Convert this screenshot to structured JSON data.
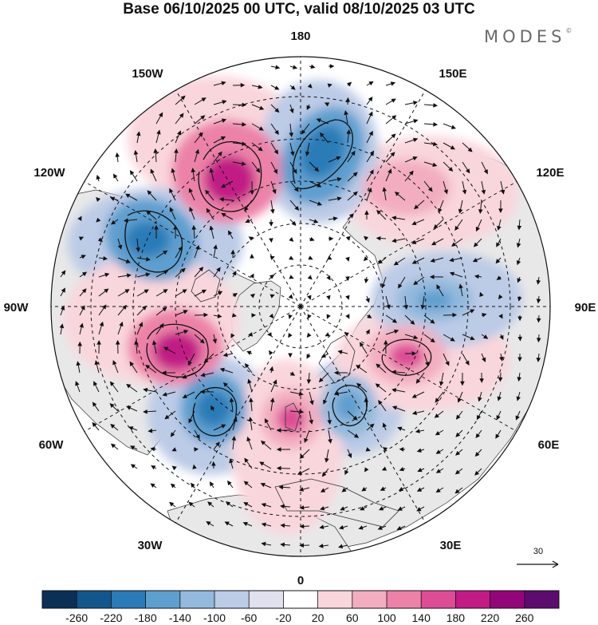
{
  "title": "Base 06/10/2025 00 UTC, valid 08/10/2025 03 UTC",
  "brand": {
    "name": "MODES",
    "mark": "©"
  },
  "projection": "north-polar-stereographic",
  "longitude_labels": {
    "deg_180": "180",
    "deg_150e": "150E",
    "deg_120e": "120E",
    "deg_90e": "90E",
    "deg_60e": "60E",
    "deg_30e": "30E",
    "deg_0": "0",
    "deg_30w": "30W",
    "deg_60w": "60W",
    "deg_90w": "90W",
    "deg_120w": "120W",
    "deg_150w": "150W"
  },
  "wind_reference": {
    "value": "30"
  },
  "colorbar": {
    "ticks": [
      "-260",
      "-220",
      "-180",
      "-140",
      "-100",
      "-60",
      "-20",
      "20",
      "60",
      "100",
      "140",
      "180",
      "220",
      "260"
    ],
    "colors": [
      "#0b2f55",
      "#12578c",
      "#2a7bb7",
      "#5e9fcf",
      "#93b9dd",
      "#bccbe6",
      "#e0e0ef",
      "#ffffff",
      "#f9d6dc",
      "#f2aec0",
      "#ec82a8",
      "#dd4d95",
      "#c11b85",
      "#93067a",
      "#5d0b6f"
    ]
  },
  "anomaly_centers": [
    {
      "name": "ridge-pacific-150w",
      "lon": -150,
      "lat": 58,
      "sign": "positive",
      "value": 200
    },
    {
      "name": "trough-bering",
      "lon": 172,
      "lat": 62,
      "sign": "negative",
      "value": -140
    },
    {
      "name": "trough-canada-120w",
      "lon": -118,
      "lat": 58,
      "sign": "negative",
      "value": -160
    },
    {
      "name": "ridge-us-east",
      "lon": -88,
      "lat": 44,
      "sign": "positive",
      "value": 210
    },
    {
      "name": "trough-atlantic-55w",
      "lon": -52,
      "lat": 42,
      "sign": "negative",
      "value": -150
    },
    {
      "name": "ridge-uk",
      "lon": -8,
      "lat": 54,
      "sign": "positive",
      "value": 140
    },
    {
      "name": "trough-europe-15e",
      "lon": 18,
      "lat": 55,
      "sign": "negative",
      "value": -140
    },
    {
      "name": "ridge-russia-60e",
      "lon": 62,
      "lat": 55,
      "sign": "positive",
      "value": 150
    },
    {
      "name": "trough-siberia-95e",
      "lon": 95,
      "lat": 62,
      "sign": "negative",
      "value": -110
    },
    {
      "name": "ridge-siberia-130e",
      "lon": 130,
      "lat": 60,
      "sign": "positive",
      "value": 80
    }
  ]
}
